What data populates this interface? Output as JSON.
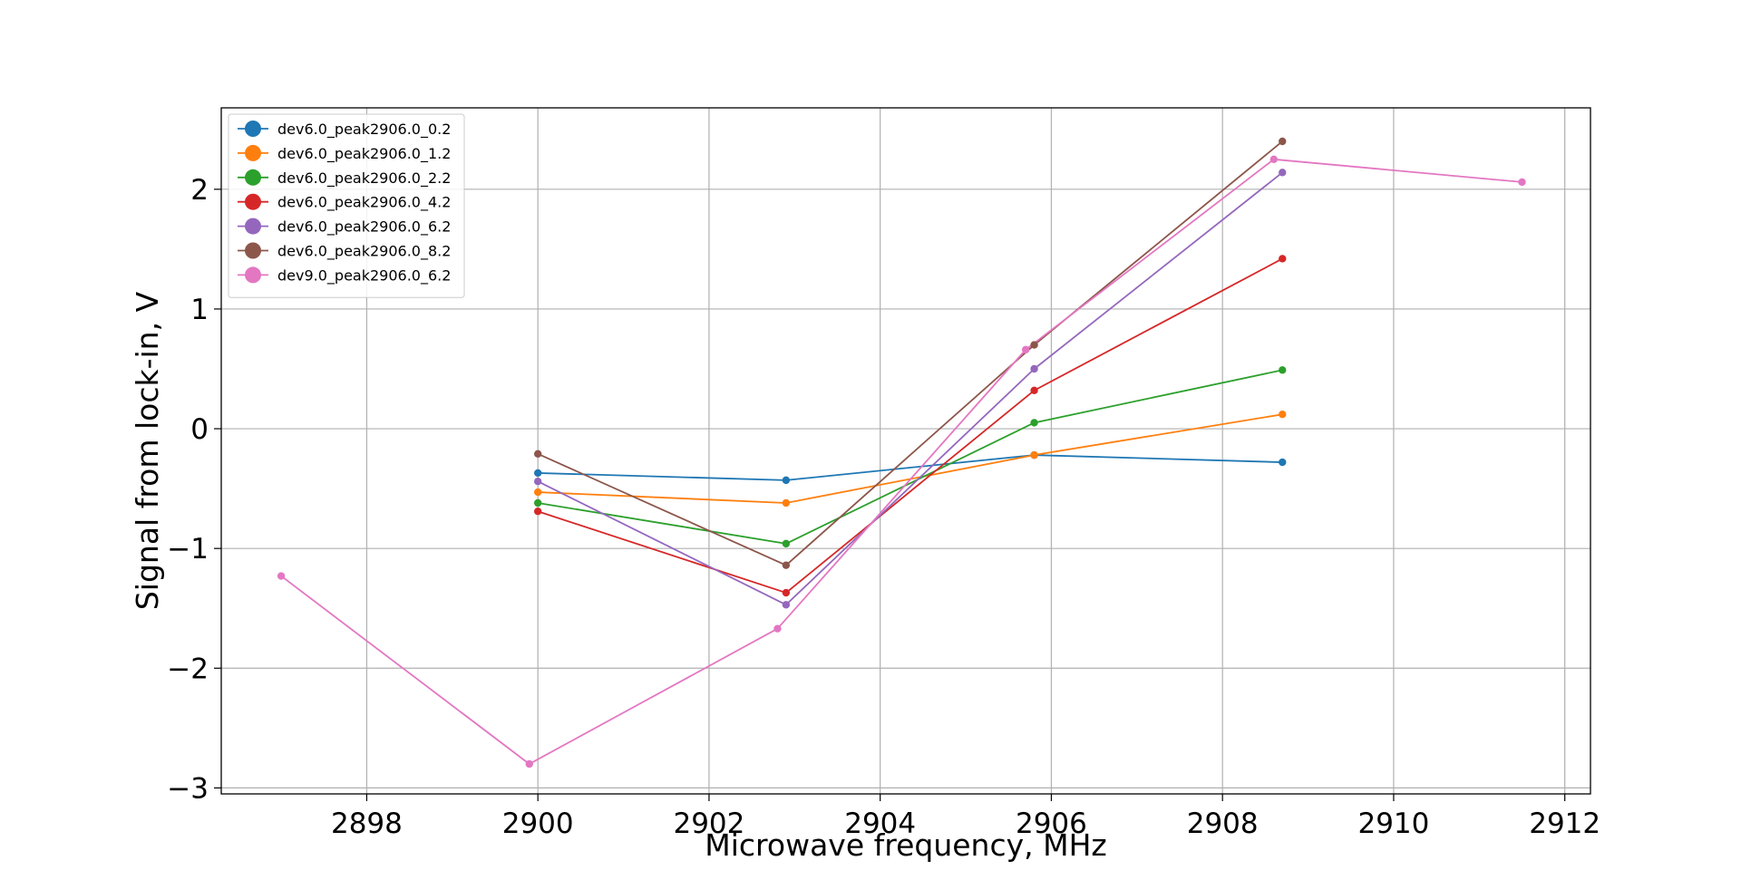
{
  "chart_data": {
    "type": "line",
    "title": "",
    "xlabel": "Microwave frequency, MHz",
    "ylabel": "Signal from lock-in, V",
    "xlim": [
      2896.3,
      2912.3
    ],
    "ylim": [
      -3.05,
      2.68
    ],
    "xticks": [
      2898,
      2900,
      2902,
      2904,
      2906,
      2908,
      2910,
      2912
    ],
    "yticks": [
      -3,
      -2,
      -1,
      0,
      1,
      2
    ],
    "xtick_labels": [
      "2898",
      "2900",
      "2902",
      "2904",
      "2906",
      "2908",
      "2910",
      "2912"
    ],
    "ytick_labels": [
      "−3",
      "−2",
      "−1",
      "0",
      "1",
      "2"
    ],
    "grid": true,
    "legend_position": "top-left",
    "series": [
      {
        "name": "dev6.0_peak2906.0_0.2",
        "color": "#1f77b4",
        "x": [
          2900,
          2902.9,
          2905.8,
          2908.7
        ],
        "y": [
          -0.37,
          -0.43,
          -0.22,
          -0.28
        ]
      },
      {
        "name": "dev6.0_peak2906.0_1.2",
        "color": "#ff7f0e",
        "x": [
          2900,
          2902.9,
          2905.8,
          2908.7
        ],
        "y": [
          -0.53,
          -0.62,
          -0.22,
          0.12
        ]
      },
      {
        "name": "dev6.0_peak2906.0_2.2",
        "color": "#2ca02c",
        "x": [
          2900,
          2902.9,
          2905.8,
          2908.7
        ],
        "y": [
          -0.62,
          -0.96,
          0.05,
          0.49
        ]
      },
      {
        "name": "dev6.0_peak2906.0_4.2",
        "color": "#d62728",
        "x": [
          2900,
          2902.9,
          2905.8,
          2908.7
        ],
        "y": [
          -0.69,
          -1.37,
          0.32,
          1.42
        ]
      },
      {
        "name": "dev6.0_peak2906.0_6.2",
        "color": "#9467bd",
        "x": [
          2900,
          2902.9,
          2905.8,
          2908.7
        ],
        "y": [
          -0.44,
          -1.47,
          0.5,
          2.14
        ]
      },
      {
        "name": "dev6.0_peak2906.0_8.2",
        "color": "#8c564b",
        "x": [
          2900,
          2902.9,
          2905.8,
          2908.7
        ],
        "y": [
          -0.21,
          -1.14,
          0.7,
          2.4
        ]
      },
      {
        "name": "dev9.0_peak2906.0_6.2",
        "color": "#e377c2",
        "x": [
          2897.0,
          2899.9,
          2902.8,
          2905.7,
          2908.6,
          2911.5
        ],
        "y": [
          -1.23,
          -2.8,
          -1.67,
          0.66,
          2.25,
          2.06
        ]
      }
    ]
  }
}
